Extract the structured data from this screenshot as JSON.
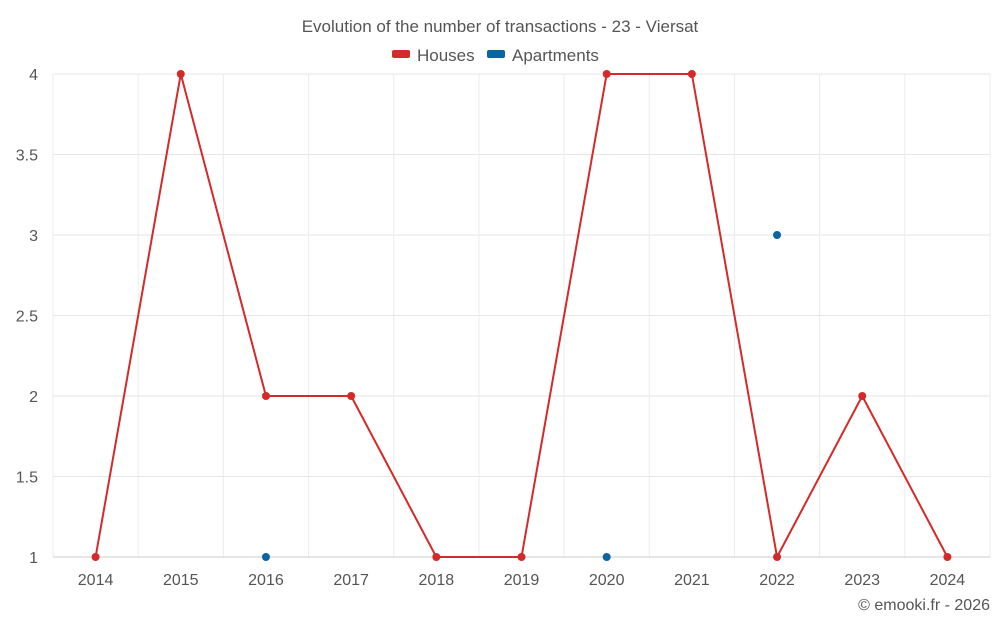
{
  "chart_data": {
    "type": "line",
    "title": "Evolution of the number of transactions - 23 - Viersat",
    "xlabel": "",
    "ylabel": "",
    "categories": [
      "2014",
      "2015",
      "2016",
      "2017",
      "2018",
      "2019",
      "2020",
      "2021",
      "2022",
      "2023",
      "2024"
    ],
    "y_ticks": [
      "1",
      "1.5",
      "2",
      "2.5",
      "3",
      "3.5",
      "4"
    ],
    "ylim": [
      1,
      4
    ],
    "grid": true,
    "legend_position": "top-center",
    "series": [
      {
        "name": "Houses",
        "color": "#d42a2a",
        "values": [
          1,
          4,
          2,
          2,
          1,
          1,
          4,
          4,
          1,
          2,
          1
        ],
        "line": true
      },
      {
        "name": "Apartments",
        "color": "#0a64a0",
        "values": [
          null,
          null,
          1,
          null,
          null,
          null,
          1,
          null,
          3,
          null,
          null
        ],
        "line": false
      }
    ],
    "credit": "© emooki.fr - 2026"
  }
}
